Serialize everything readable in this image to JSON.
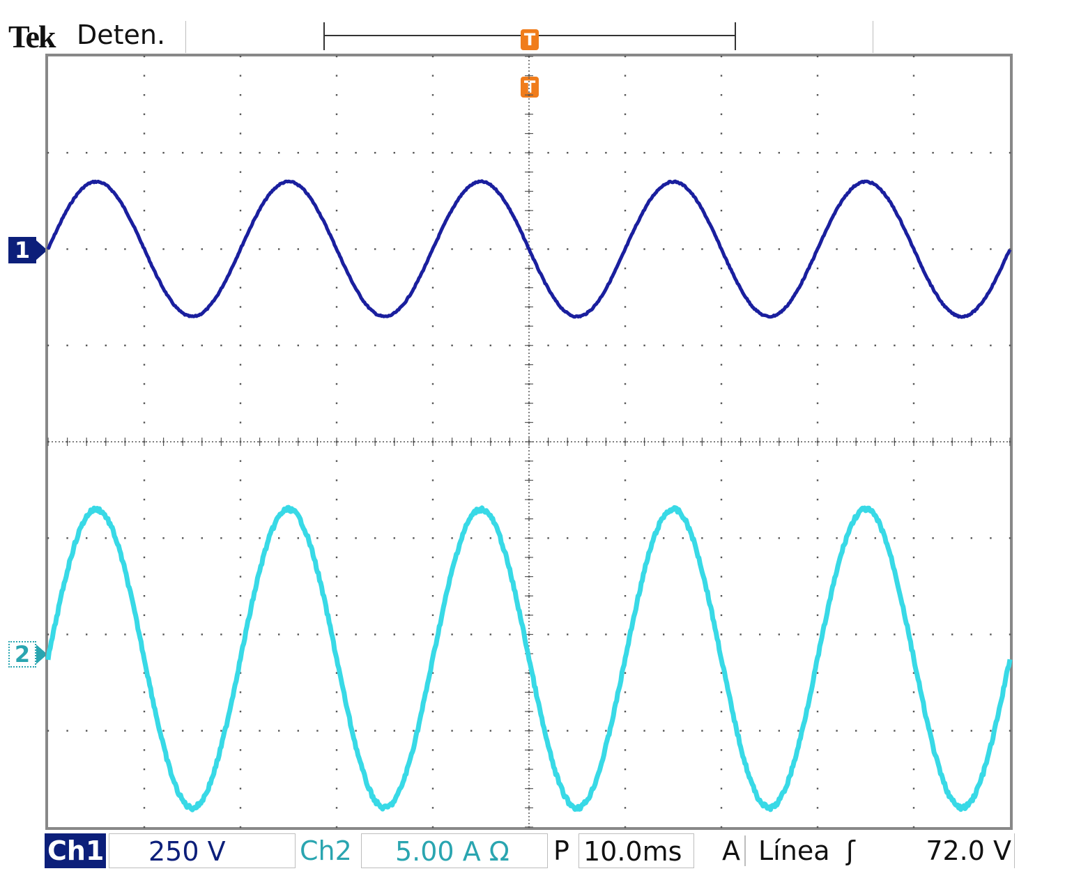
{
  "header": {
    "brand": "Tek",
    "acquisition_state": "Deten."
  },
  "trigger": {
    "position_marker": "T",
    "level_marker": "T"
  },
  "channels": {
    "ch1_marker": "1",
    "ch2_marker": "2"
  },
  "status": {
    "ch1_label": "Ch1",
    "ch1_scale": "250 V",
    "ch2_label": "Ch2",
    "ch2_scale": "5.00 A Ω",
    "timebase_prefix": "P",
    "timebase": "10.0ms",
    "trigger_mode": "A",
    "trigger_source": "Línea",
    "trigger_slope": "ʃ",
    "trigger_level": "72.0 V"
  },
  "colors": {
    "ch1": "#1a1f9e",
    "ch2": "#38d9e6",
    "grid": "#555555",
    "trigger": "#f07c1b"
  },
  "chart_data": {
    "type": "line",
    "grid": true,
    "divisions": {
      "x": 10,
      "y": 8
    },
    "x_unit": "ms",
    "x_per_div": 10,
    "xlim": [
      -50,
      50
    ],
    "series": [
      {
        "name": "Ch1",
        "unit": "V",
        "per_div": 250,
        "amplitude": 175,
        "period_ms": 20,
        "phase_deg": 0,
        "offset_div": 2.0,
        "noise": "low"
      },
      {
        "name": "Ch2",
        "unit": "A",
        "per_div": 5,
        "amplitude": 7.75,
        "period_ms": 20,
        "phase_deg": 0,
        "offset_div": -2.25,
        "noise": "high"
      }
    ]
  }
}
